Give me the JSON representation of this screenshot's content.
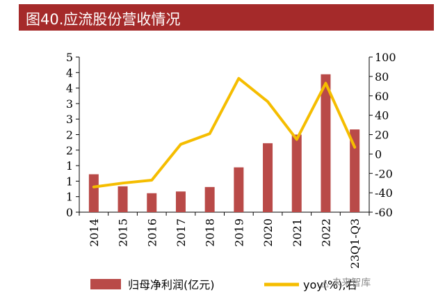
{
  "page": {
    "title": "图40.应流股份营收情况",
    "watermark": "△ 未来智库"
  },
  "chart_data": {
    "type": "bar+line",
    "title": "图40.应流股份营收情况",
    "categories": [
      "2014",
      "2015",
      "2016",
      "2017",
      "2018",
      "2019",
      "2020",
      "2021",
      "2022",
      "23Q1-Q3"
    ],
    "left_axis": {
      "ticks": [
        "0",
        "1",
        "1",
        "1",
        "2",
        "2",
        "3",
        "3",
        "4",
        "4",
        "5"
      ],
      "range": [
        0,
        4.5
      ]
    },
    "right_axis": {
      "ticks": [
        "-60",
        "-40",
        "-20",
        "0",
        "20",
        "40",
        "60",
        "80",
        "100"
      ],
      "range": [
        -60,
        100
      ]
    },
    "series": [
      {
        "name": "归母净利润(亿元)",
        "type": "bar",
        "axis": "left",
        "color": "#b94a48",
        "values": [
          1.1,
          0.75,
          0.55,
          0.6,
          0.73,
          1.3,
          2.0,
          2.25,
          4.0,
          2.4
        ]
      },
      {
        "name": "yoy(%),右",
        "type": "line",
        "axis": "right",
        "color": "#f5bd00",
        "values": [
          -34,
          -30,
          -27,
          10,
          21,
          78,
          54,
          15,
          73,
          7
        ]
      }
    ],
    "legend": {
      "position": "bottom"
    },
    "grid": false
  }
}
